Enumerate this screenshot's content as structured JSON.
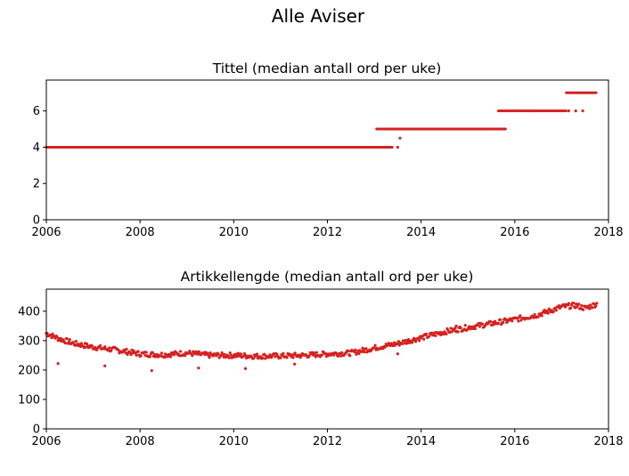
{
  "figure": {
    "suptitle": "Alle Aviser"
  },
  "chart_data": [
    {
      "type": "scatter",
      "title": "Tittel (median antall ord per uke)",
      "xlabel": "",
      "ylabel": "",
      "xlim": [
        2006,
        2018
      ],
      "ylim": [
        0,
        7.7
      ],
      "xticks": [
        2006,
        2008,
        2010,
        2012,
        2014,
        2016,
        2018
      ],
      "yticks": [
        0,
        2,
        4,
        6
      ],
      "grid": false,
      "marker_color": "#d62020",
      "segments": [
        {
          "x_start": 2006.0,
          "x_end": 2013.35,
          "y": 4
        },
        {
          "x_start": 2013.05,
          "x_end": 2015.8,
          "y": 5
        },
        {
          "x_start": 2015.65,
          "x_end": 2017.1,
          "y": 6
        },
        {
          "x_start": 2017.1,
          "x_end": 2017.75,
          "y": 7
        }
      ],
      "outliers": [
        {
          "x": 2013.38,
          "y": 4
        },
        {
          "x": 2013.5,
          "y": 4
        },
        {
          "x": 2013.55,
          "y": 4.5
        },
        {
          "x": 2015.78,
          "y": 5
        },
        {
          "x": 2017.15,
          "y": 6
        },
        {
          "x": 2017.3,
          "y": 6
        },
        {
          "x": 2017.45,
          "y": 6
        }
      ]
    },
    {
      "type": "scatter",
      "title": "Artikkellengde (median antall ord per uke)",
      "xlabel": "",
      "ylabel": "",
      "xlim": [
        2006,
        2018
      ],
      "ylim": [
        0,
        475
      ],
      "xticks": [
        2006,
        2008,
        2010,
        2012,
        2014,
        2016,
        2018
      ],
      "yticks": [
        0,
        100,
        200,
        300,
        400
      ],
      "grid": false,
      "marker_color": "#d62020",
      "trend": [
        [
          2006.0,
          325
        ],
        [
          2006.3,
          305
        ],
        [
          2006.6,
          290
        ],
        [
          2007.0,
          278
        ],
        [
          2007.5,
          268
        ],
        [
          2008.0,
          255
        ],
        [
          2008.5,
          252
        ],
        [
          2009.0,
          258
        ],
        [
          2009.5,
          250
        ],
        [
          2010.0,
          250
        ],
        [
          2010.5,
          247
        ],
        [
          2011.0,
          248
        ],
        [
          2011.5,
          250
        ],
        [
          2012.0,
          255
        ],
        [
          2012.5,
          258
        ],
        [
          2013.0,
          275
        ],
        [
          2013.5,
          290
        ],
        [
          2014.0,
          310
        ],
        [
          2014.5,
          330
        ],
        [
          2015.0,
          345
        ],
        [
          2015.5,
          358
        ],
        [
          2016.0,
          372
        ],
        [
          2016.5,
          388
        ],
        [
          2017.0,
          415
        ],
        [
          2017.3,
          420
        ],
        [
          2017.5,
          410
        ],
        [
          2017.75,
          425
        ]
      ],
      "outliers": [
        {
          "x": 2006.25,
          "y": 222
        },
        {
          "x": 2007.25,
          "y": 214
        },
        {
          "x": 2008.25,
          "y": 198
        },
        {
          "x": 2009.25,
          "y": 207
        },
        {
          "x": 2010.25,
          "y": 205
        },
        {
          "x": 2011.3,
          "y": 220
        },
        {
          "x": 2013.5,
          "y": 255
        },
        {
          "x": 2014.75,
          "y": 350
        }
      ]
    }
  ]
}
